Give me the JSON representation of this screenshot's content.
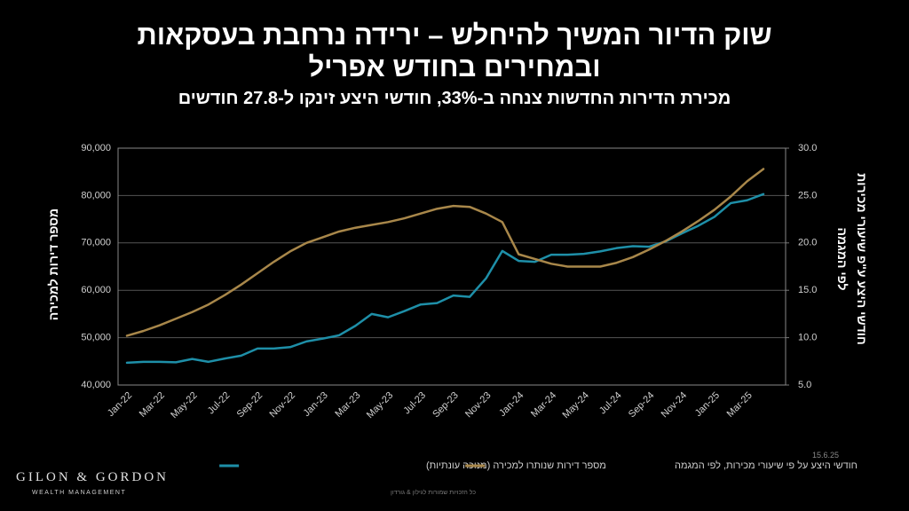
{
  "chart_data": {
    "type": "line",
    "title": "שוק הדיור המשיך להיחלש – ירידה נרחבת בעסקאות ובמחירים בחודש אפריל",
    "subtitle": "מכירת הדירות החדשות צנחה ב-33%, חודשי היצע זינקו ל-27.8 חודשים",
    "y_label": "מספר דירות למכירה",
    "y2_label": "חודשי היצע ע\"פ שיעורי מכירות לפי המגמה",
    "categories": [
      "Jan-22",
      null,
      "Mar-22",
      null,
      "May-22",
      null,
      "Jul-22",
      null,
      "Sep-22",
      null,
      "Nov-22",
      null,
      "Jan-23",
      null,
      "Mar-23",
      null,
      "May-23",
      null,
      "Jul-23",
      null,
      "Sep-23",
      null,
      "Nov-23",
      null,
      "Jan-24",
      null,
      "Mar-24",
      null,
      "May-24",
      null,
      "Jul-24",
      null,
      "Sep-24",
      null,
      "Nov-24",
      null,
      "Jan-25",
      null,
      "Mar-25",
      null
    ],
    "series": [
      {
        "name": "מספר דירות שנותרו למכירה (מנוכה עונתיות)",
        "color": "#1e8fa8",
        "axis": "y",
        "values": [
          44700,
          44900,
          44900,
          44800,
          45500,
          44900,
          45600,
          46200,
          47700,
          47700,
          48000,
          49200,
          49800,
          50500,
          52500,
          55000,
          54300,
          55600,
          57000,
          57300,
          58900,
          58600,
          62500,
          68300,
          66200,
          66000,
          67500,
          67500,
          67700,
          68200,
          68900,
          69300,
          69200,
          70300,
          72000,
          73600,
          75500,
          78400,
          79000,
          80300
        ]
      },
      {
        "name": "חודשי היצע על פי שיעורי מכירות, לפי המגמה",
        "color": "#a8874a",
        "axis": "y2",
        "values": [
          10.2,
          10.7,
          11.3,
          12.0,
          12.7,
          13.5,
          14.5,
          15.6,
          16.8,
          18.0,
          19.1,
          20.0,
          20.6,
          21.2,
          21.6,
          21.9,
          22.2,
          22.6,
          23.1,
          23.6,
          23.9,
          23.8,
          23.1,
          22.2,
          18.8,
          18.3,
          17.8,
          17.5,
          17.5,
          17.5,
          17.9,
          18.5,
          19.3,
          20.2,
          21.2,
          22.3,
          23.5,
          24.9,
          26.5,
          27.8
        ]
      }
    ],
    "ylim": [
      40000,
      90000
    ],
    "yticks": [
      {
        "value": 40000,
        "label": "40,000"
      },
      {
        "value": 50000,
        "label": "50,000"
      },
      {
        "value": 60000,
        "label": "60,000"
      },
      {
        "value": 70000,
        "label": "70,000"
      },
      {
        "value": 80000,
        "label": "80,000"
      },
      {
        "value": 90000,
        "label": "90,000"
      }
    ],
    "y2lim": [
      5,
      30
    ],
    "y2ticks": [
      {
        "value": 5,
        "label": "5.0"
      },
      {
        "value": 10,
        "label": "10.0"
      },
      {
        "value": 15,
        "label": "15.0"
      },
      {
        "value": 20,
        "label": "20.0"
      },
      {
        "value": 25,
        "label": "25.0"
      },
      {
        "value": 30,
        "label": "30.0"
      }
    ],
    "grid": true,
    "legend": "bottom"
  },
  "date": "15.6.25",
  "logo": "GILON & GORDON",
  "logo_sub": "WEALTH MANAGEMENT",
  "footer": "כל הזכויות שמורות לגילון & גורדון"
}
